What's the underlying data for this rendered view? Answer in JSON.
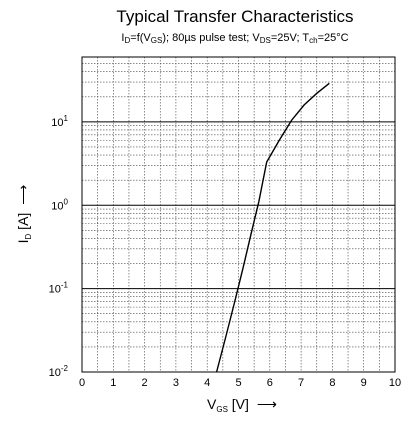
{
  "chart_data": {
    "type": "line",
    "title": "Typical Transfer Characteristics",
    "subtitle": {
      "p1": "I",
      "p1_sub": "D",
      "p2": "=f(V",
      "p2_sub": "GS",
      "p3": "); 80µs pulse test; V",
      "p3_sub": "DS",
      "p4": "=25V; T",
      "p4_sub": "ch",
      "p5": "=25°C"
    },
    "xlabel": {
      "main": "V",
      "sub": "GS",
      "rest": " [V]",
      "arrow": "⟶"
    },
    "ylabel": {
      "main": "I",
      "sub": "D",
      "rest": " [A]",
      "arrow": "⟶"
    },
    "xlim": [
      0,
      10
    ],
    "ylim": [
      0.01,
      60
    ],
    "y_scale": "log",
    "grid": true,
    "x_ticks": [
      "0",
      "1",
      "2",
      "3",
      "4",
      "5",
      "6",
      "7",
      "8",
      "9",
      "10"
    ],
    "y_ticks": [
      {
        "value": 0.01,
        "base": "10",
        "exp": "-2"
      },
      {
        "value": 0.1,
        "base": "10",
        "exp": "-1"
      },
      {
        "value": 1,
        "base": "10",
        "exp": "0"
      },
      {
        "value": 10,
        "base": "10",
        "exp": "1"
      }
    ],
    "series": [
      {
        "x": [
          4.3,
          4.6,
          4.9,
          5.15,
          5.4,
          5.65,
          5.9,
          6.3,
          6.7,
          7.1,
          7.5,
          7.9
        ],
        "values": [
          0.01,
          0.027,
          0.075,
          0.18,
          0.45,
          1.1,
          3.3,
          6.0,
          10.5,
          16.0,
          22.0,
          29.0
        ]
      }
    ]
  }
}
